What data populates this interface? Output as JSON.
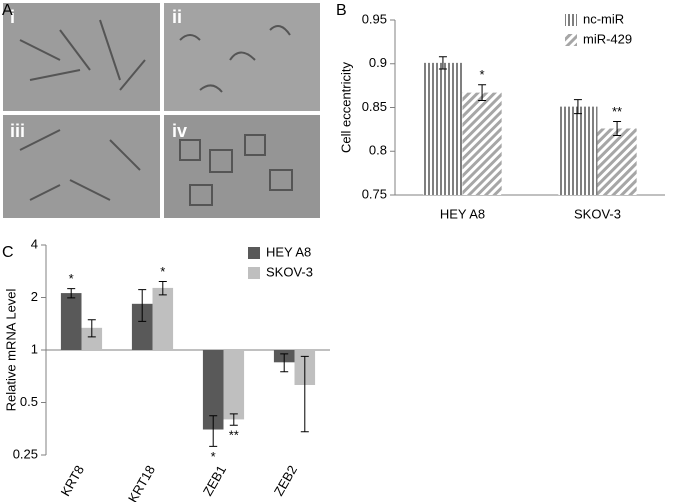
{
  "panel_labels": [
    "A",
    "B",
    "C"
  ],
  "image_labels": [
    "i",
    "ii",
    "iii",
    "iv"
  ],
  "chart_data": [
    {
      "type": "bar",
      "y_label": "Cell eccentricity",
      "categories": [
        "HEY A8",
        "SKOV-3"
      ],
      "series": [
        {
          "name": "nc-miR",
          "color": "#7f7f7f",
          "pattern": "vertical",
          "values": [
            0.901,
            0.851
          ],
          "errors": [
            0.007,
            0.008
          ],
          "annotations": [
            null,
            null
          ]
        },
        {
          "name": "miR-429",
          "color": "#a6a6a6",
          "pattern": "diagonal",
          "values": [
            0.867,
            0.826
          ],
          "errors": [
            0.009,
            0.008
          ],
          "annotations": [
            "*",
            "**"
          ]
        }
      ],
      "ylim": [
        0.75,
        0.95
      ],
      "yticks": [
        0.75,
        0.8,
        0.85,
        0.9,
        0.95
      ],
      "log_scale": false,
      "legend": "top-right"
    },
    {
      "type": "bar",
      "y_label": "Relative mRNA Level",
      "categories": [
        "KRT8",
        "KRT18",
        "ZEB1",
        "ZEB2"
      ],
      "series": [
        {
          "name": "HEY A8",
          "color": "#595959",
          "pattern": "solid",
          "values": [
            2.12,
            1.84,
            0.35,
            0.85
          ],
          "errors": [
            0.13,
            0.38,
            0.07,
            0.1
          ],
          "annotations": [
            "*",
            null,
            "*",
            null
          ]
        },
        {
          "name": "SKOV-3",
          "color": "#bfbfbf",
          "pattern": "solid",
          "values": [
            1.34,
            2.27,
            0.4,
            0.63
          ],
          "errors": [
            0.15,
            0.2,
            0.03,
            0.29
          ],
          "annotations": [
            null,
            "*",
            "**",
            null
          ]
        }
      ],
      "ylim": [
        0.25,
        4
      ],
      "yticks": [
        0.25,
        0.5,
        1,
        2,
        4
      ],
      "log_scale": true,
      "legend": "top-right"
    }
  ]
}
